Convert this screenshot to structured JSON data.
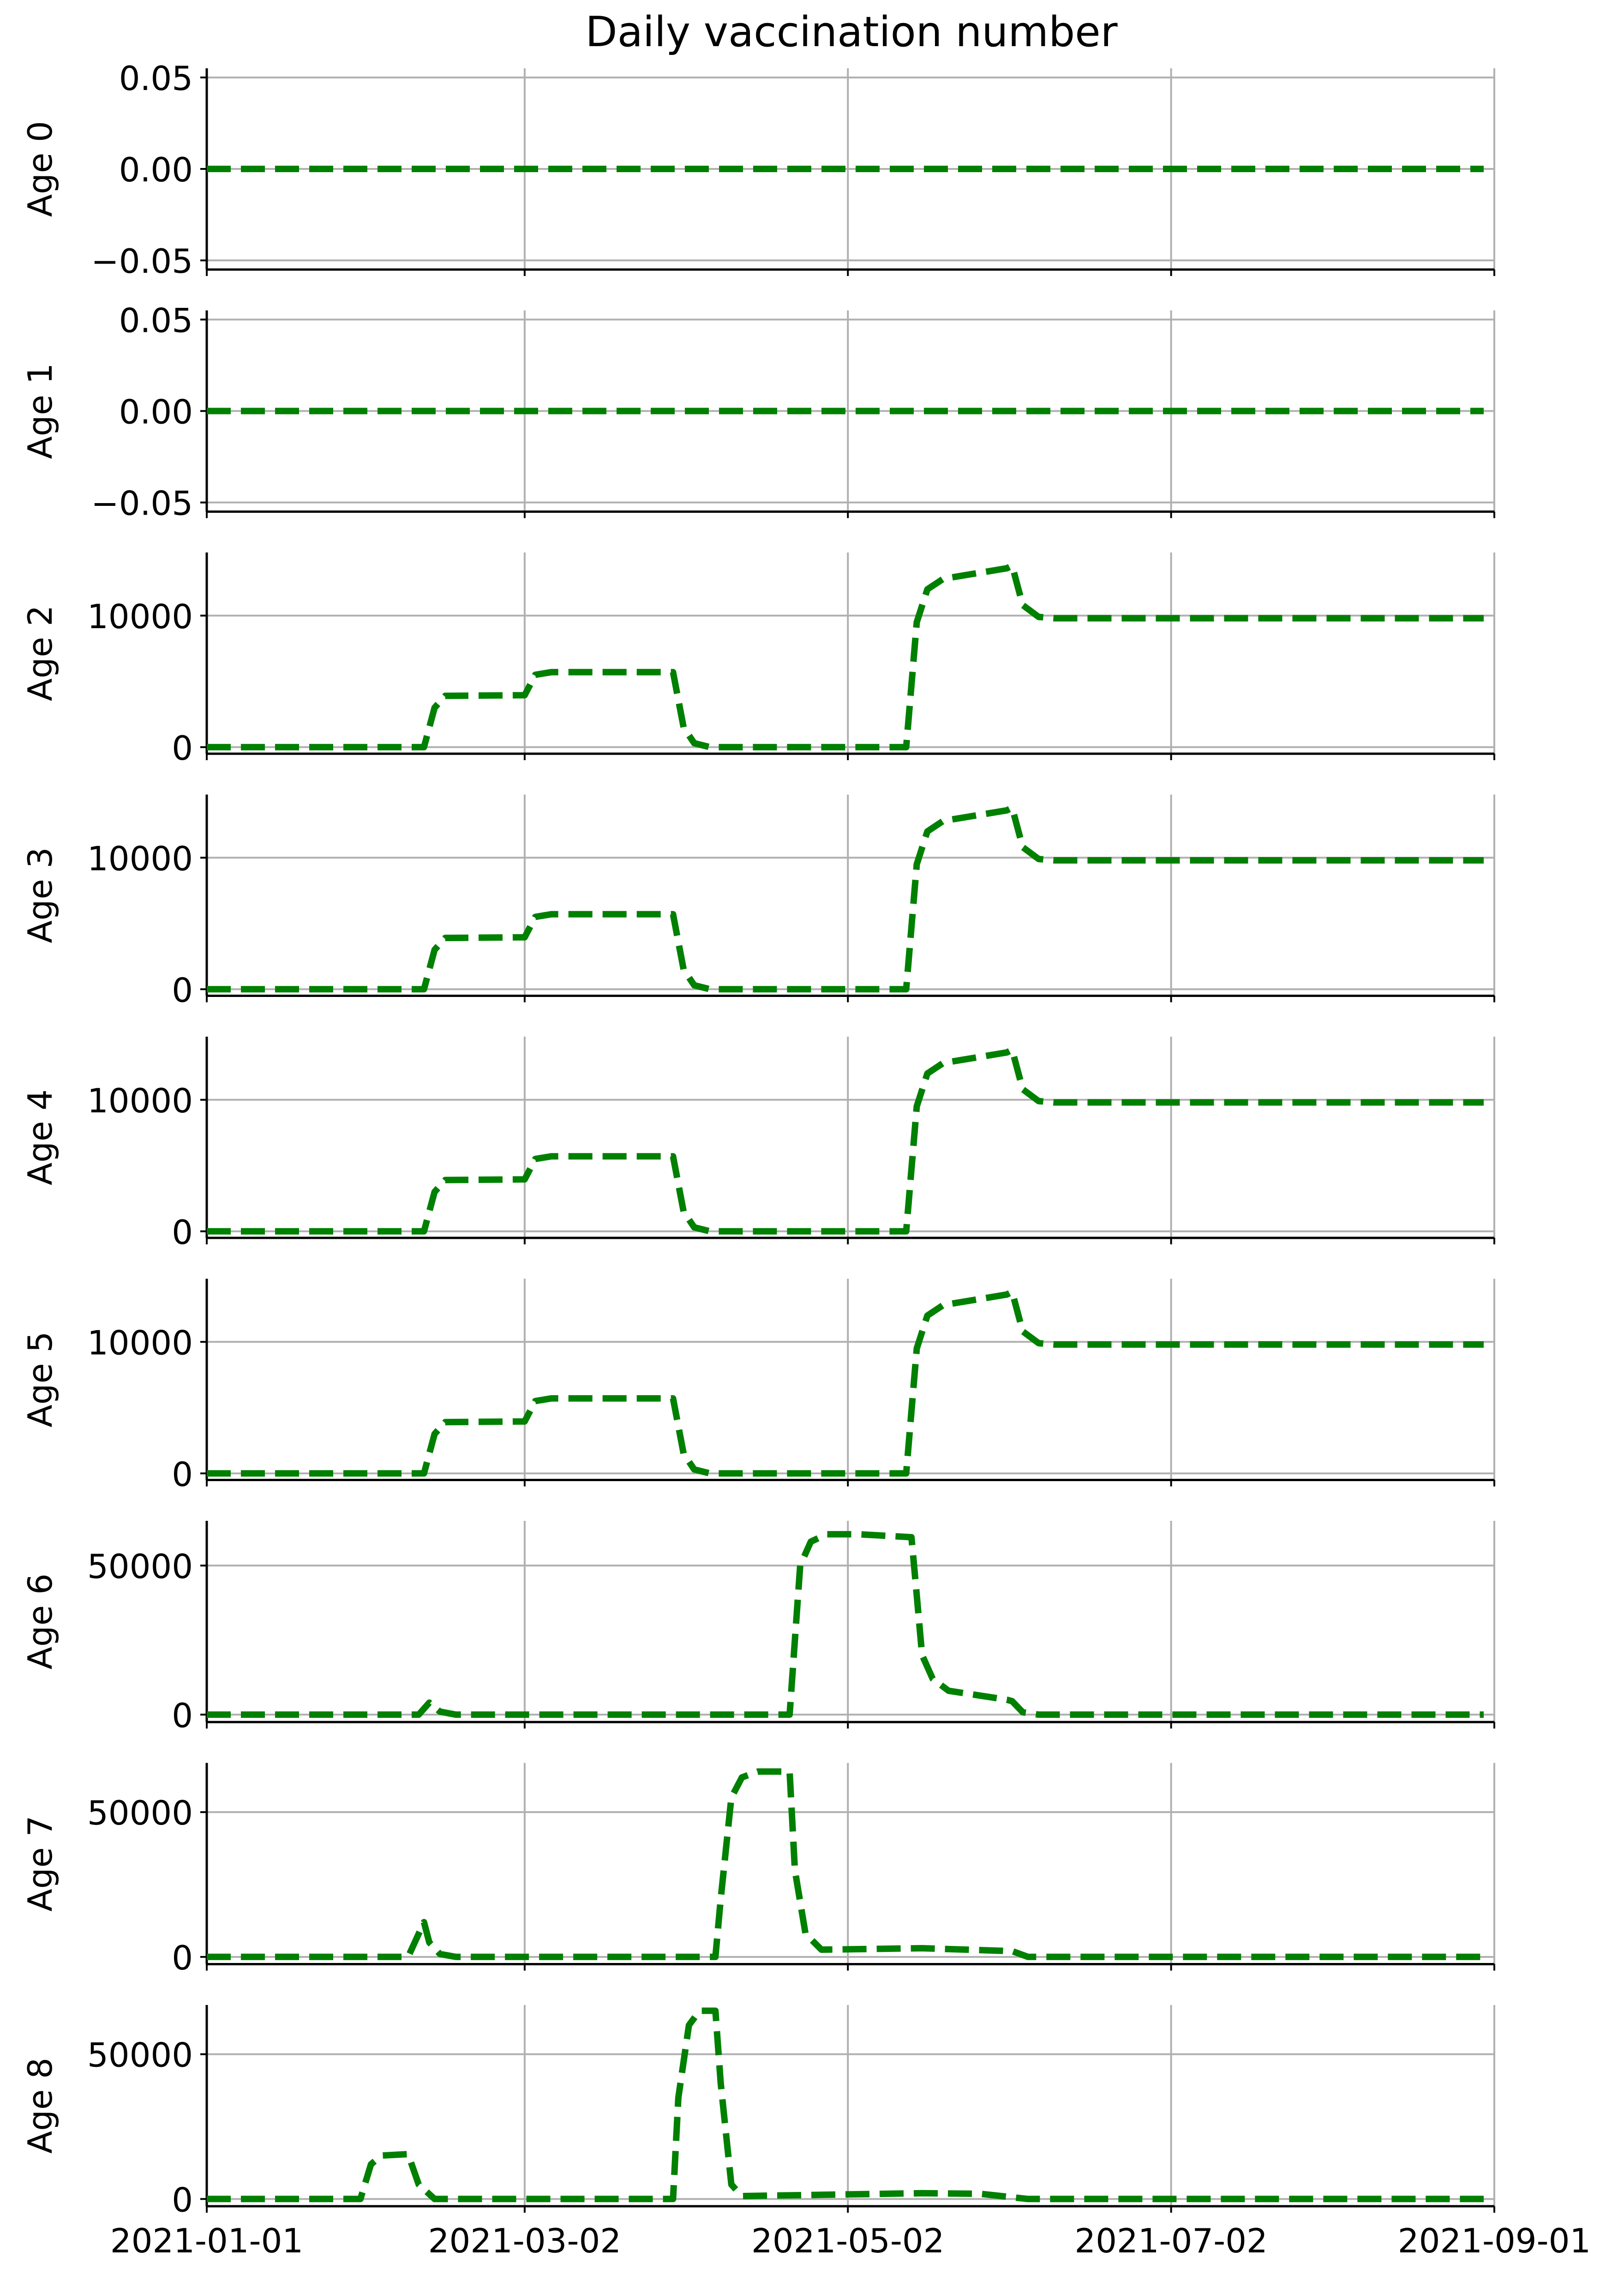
{
  "title": "Daily vaccination number",
  "line_color": "#008000",
  "grid_color": "#b0b0b0",
  "x_ticks": [
    "2021-01-01",
    "2021-03-02",
    "2021-05-02",
    "2021-07-02",
    "2021-09-01"
  ],
  "chart_data": [
    {
      "type": "line",
      "ylabel": "Age 0",
      "ylim": [
        -0.055,
        0.055
      ],
      "yticks": [
        {
          "value": 0.05,
          "label": "0.05"
        },
        {
          "value": 0.0,
          "label": "0.00"
        },
        {
          "value": -0.05,
          "label": "−0.05"
        }
      ],
      "xlim": [
        "2021-01-01",
        "2021-09-01"
      ],
      "grid": true,
      "line_style": "dashed",
      "points": [
        [
          "2021-01-01",
          0
        ],
        [
          "2021-08-30",
          0
        ]
      ]
    },
    {
      "type": "line",
      "ylabel": "Age 1",
      "ylim": [
        -0.055,
        0.055
      ],
      "yticks": [
        {
          "value": 0.05,
          "label": "0.05"
        },
        {
          "value": 0.0,
          "label": "0.00"
        },
        {
          "value": -0.05,
          "label": "−0.05"
        }
      ],
      "xlim": [
        "2021-01-01",
        "2021-09-01"
      ],
      "grid": true,
      "line_style": "dashed",
      "points": [
        [
          "2021-01-01",
          0
        ],
        [
          "2021-08-30",
          0
        ]
      ]
    },
    {
      "type": "line",
      "ylabel": "Age 2",
      "ylim": [
        -500,
        14800
      ],
      "yticks": [
        {
          "value": 10000,
          "label": "10000"
        },
        {
          "value": 0,
          "label": "0"
        }
      ],
      "xlim": [
        "2021-01-01",
        "2021-09-01"
      ],
      "grid": true,
      "line_style": "dashed",
      "points": [
        [
          "2021-01-01",
          0
        ],
        [
          "2021-02-11",
          0
        ],
        [
          "2021-02-13",
          3000
        ],
        [
          "2021-02-15",
          3900
        ],
        [
          "2021-03-02",
          3950
        ],
        [
          "2021-03-04",
          5500
        ],
        [
          "2021-03-07",
          5700
        ],
        [
          "2021-03-30",
          5700
        ],
        [
          "2021-04-01",
          1500
        ],
        [
          "2021-04-03",
          300
        ],
        [
          "2021-04-06",
          0
        ],
        [
          "2021-05-13",
          0
        ],
        [
          "2021-05-15",
          9500
        ],
        [
          "2021-05-17",
          12000
        ],
        [
          "2021-05-20",
          12800
        ],
        [
          "2021-06-01",
          13600
        ],
        [
          "2021-06-02",
          13800
        ],
        [
          "2021-06-04",
          10800
        ],
        [
          "2021-06-07",
          9900
        ],
        [
          "2021-06-10",
          9800
        ],
        [
          "2021-08-30",
          9800
        ]
      ]
    },
    {
      "type": "line",
      "ylabel": "Age 3",
      "ylim": [
        -500,
        14800
      ],
      "yticks": [
        {
          "value": 10000,
          "label": "10000"
        },
        {
          "value": 0,
          "label": "0"
        }
      ],
      "xlim": [
        "2021-01-01",
        "2021-09-01"
      ],
      "grid": true,
      "line_style": "dashed",
      "points": [
        [
          "2021-01-01",
          0
        ],
        [
          "2021-02-11",
          0
        ],
        [
          "2021-02-13",
          3000
        ],
        [
          "2021-02-15",
          3900
        ],
        [
          "2021-03-02",
          3950
        ],
        [
          "2021-03-04",
          5500
        ],
        [
          "2021-03-07",
          5700
        ],
        [
          "2021-03-30",
          5700
        ],
        [
          "2021-04-01",
          1500
        ],
        [
          "2021-04-03",
          300
        ],
        [
          "2021-04-06",
          0
        ],
        [
          "2021-05-13",
          0
        ],
        [
          "2021-05-15",
          9500
        ],
        [
          "2021-05-17",
          12000
        ],
        [
          "2021-05-20",
          12800
        ],
        [
          "2021-06-01",
          13600
        ],
        [
          "2021-06-02",
          13800
        ],
        [
          "2021-06-04",
          10800
        ],
        [
          "2021-06-07",
          9900
        ],
        [
          "2021-06-10",
          9800
        ],
        [
          "2021-08-30",
          9800
        ]
      ]
    },
    {
      "type": "line",
      "ylabel": "Age 4",
      "ylim": [
        -500,
        14800
      ],
      "yticks": [
        {
          "value": 10000,
          "label": "10000"
        },
        {
          "value": 0,
          "label": "0"
        }
      ],
      "xlim": [
        "2021-01-01",
        "2021-09-01"
      ],
      "grid": true,
      "line_style": "dashed",
      "points": [
        [
          "2021-01-01",
          0
        ],
        [
          "2021-02-11",
          0
        ],
        [
          "2021-02-13",
          3000
        ],
        [
          "2021-02-15",
          3900
        ],
        [
          "2021-03-02",
          3950
        ],
        [
          "2021-03-04",
          5500
        ],
        [
          "2021-03-07",
          5700
        ],
        [
          "2021-03-30",
          5700
        ],
        [
          "2021-04-01",
          1500
        ],
        [
          "2021-04-03",
          300
        ],
        [
          "2021-04-06",
          0
        ],
        [
          "2021-05-13",
          0
        ],
        [
          "2021-05-15",
          9500
        ],
        [
          "2021-05-17",
          12000
        ],
        [
          "2021-05-20",
          12800
        ],
        [
          "2021-06-01",
          13600
        ],
        [
          "2021-06-02",
          13800
        ],
        [
          "2021-06-04",
          10800
        ],
        [
          "2021-06-07",
          9900
        ],
        [
          "2021-06-10",
          9800
        ],
        [
          "2021-08-30",
          9800
        ]
      ]
    },
    {
      "type": "line",
      "ylabel": "Age 5",
      "ylim": [
        -500,
        14800
      ],
      "yticks": [
        {
          "value": 10000,
          "label": "10000"
        },
        {
          "value": 0,
          "label": "0"
        }
      ],
      "xlim": [
        "2021-01-01",
        "2021-09-01"
      ],
      "grid": true,
      "line_style": "dashed",
      "points": [
        [
          "2021-01-01",
          0
        ],
        [
          "2021-02-11",
          0
        ],
        [
          "2021-02-13",
          3000
        ],
        [
          "2021-02-15",
          3900
        ],
        [
          "2021-03-02",
          3950
        ],
        [
          "2021-03-04",
          5500
        ],
        [
          "2021-03-07",
          5700
        ],
        [
          "2021-03-30",
          5700
        ],
        [
          "2021-04-01",
          1500
        ],
        [
          "2021-04-03",
          300
        ],
        [
          "2021-04-06",
          0
        ],
        [
          "2021-05-13",
          0
        ],
        [
          "2021-05-15",
          9500
        ],
        [
          "2021-05-17",
          12000
        ],
        [
          "2021-05-20",
          12800
        ],
        [
          "2021-06-01",
          13600
        ],
        [
          "2021-06-02",
          13800
        ],
        [
          "2021-06-04",
          10800
        ],
        [
          "2021-06-07",
          9900
        ],
        [
          "2021-06-10",
          9800
        ],
        [
          "2021-08-30",
          9800
        ]
      ]
    },
    {
      "type": "line",
      "ylabel": "Age 6",
      "ylim": [
        -2500,
        65000
      ],
      "yticks": [
        {
          "value": 50000,
          "label": "50000"
        },
        {
          "value": 0,
          "label": "0"
        }
      ],
      "xlim": [
        "2021-01-01",
        "2021-09-01"
      ],
      "grid": true,
      "line_style": "dashed",
      "points": [
        [
          "2021-01-01",
          0
        ],
        [
          "2021-02-10",
          0
        ],
        [
          "2021-02-12",
          4000
        ],
        [
          "2021-02-14",
          1000
        ],
        [
          "2021-02-17",
          0
        ],
        [
          "2021-04-21",
          0
        ],
        [
          "2021-04-22",
          25000
        ],
        [
          "2021-04-23",
          50000
        ],
        [
          "2021-04-25",
          58000
        ],
        [
          "2021-04-28",
          60500
        ],
        [
          "2021-05-04",
          60500
        ],
        [
          "2021-05-14",
          59500
        ],
        [
          "2021-05-15",
          40000
        ],
        [
          "2021-05-16",
          20000
        ],
        [
          "2021-05-18",
          12000
        ],
        [
          "2021-05-21",
          8000
        ],
        [
          "2021-06-01",
          5000
        ],
        [
          "2021-06-02",
          4500
        ],
        [
          "2021-06-04",
          800
        ],
        [
          "2021-06-07",
          0
        ],
        [
          "2021-08-30",
          0
        ]
      ]
    },
    {
      "type": "line",
      "ylabel": "Age 7",
      "ylim": [
        -2500,
        67000
      ],
      "yticks": [
        {
          "value": 50000,
          "label": "50000"
        },
        {
          "value": 0,
          "label": "0"
        }
      ],
      "xlim": [
        "2021-01-01",
        "2021-09-01"
      ],
      "grid": true,
      "line_style": "dashed",
      "points": [
        [
          "2021-01-01",
          0
        ],
        [
          "2021-02-08",
          0
        ],
        [
          "2021-02-10",
          8000
        ],
        [
          "2021-02-11",
          12000
        ],
        [
          "2021-02-12",
          5000
        ],
        [
          "2021-02-14",
          1000
        ],
        [
          "2021-02-17",
          0
        ],
        [
          "2021-04-07",
          0
        ],
        [
          "2021-04-08",
          20000
        ],
        [
          "2021-04-10",
          55000
        ],
        [
          "2021-04-12",
          62000
        ],
        [
          "2021-04-15",
          64000
        ],
        [
          "2021-04-21",
          64000
        ],
        [
          "2021-04-22",
          30000
        ],
        [
          "2021-04-24",
          8000
        ],
        [
          "2021-04-27",
          2500
        ],
        [
          "2021-05-16",
          3000
        ],
        [
          "2021-06-02",
          2000
        ],
        [
          "2021-06-05",
          0
        ],
        [
          "2021-08-30",
          0
        ]
      ]
    },
    {
      "type": "line",
      "ylabel": "Age 8",
      "ylim": [
        -2500,
        67000
      ],
      "yticks": [
        {
          "value": 50000,
          "label": "50000"
        },
        {
          "value": 0,
          "label": "0"
        }
      ],
      "xlim": [
        "2021-01-01",
        "2021-09-01"
      ],
      "grid": true,
      "line_style": "dashed",
      "points": [
        [
          "2021-01-01",
          0
        ],
        [
          "2021-01-30",
          0
        ],
        [
          "2021-02-01",
          12000
        ],
        [
          "2021-02-03",
          15000
        ],
        [
          "2021-02-08",
          15500
        ],
        [
          "2021-02-10",
          5000
        ],
        [
          "2021-02-13",
          0
        ],
        [
          "2021-03-30",
          0
        ],
        [
          "2021-03-31",
          35000
        ],
        [
          "2021-04-02",
          60000
        ],
        [
          "2021-04-04",
          65000
        ],
        [
          "2021-04-07",
          65000
        ],
        [
          "2021-04-08",
          40000
        ],
        [
          "2021-04-10",
          5000
        ],
        [
          "2021-04-12",
          1000
        ],
        [
          "2021-05-16",
          2000
        ],
        [
          "2021-05-27",
          1800
        ],
        [
          "2021-06-05",
          0
        ],
        [
          "2021-08-30",
          0
        ]
      ]
    }
  ]
}
